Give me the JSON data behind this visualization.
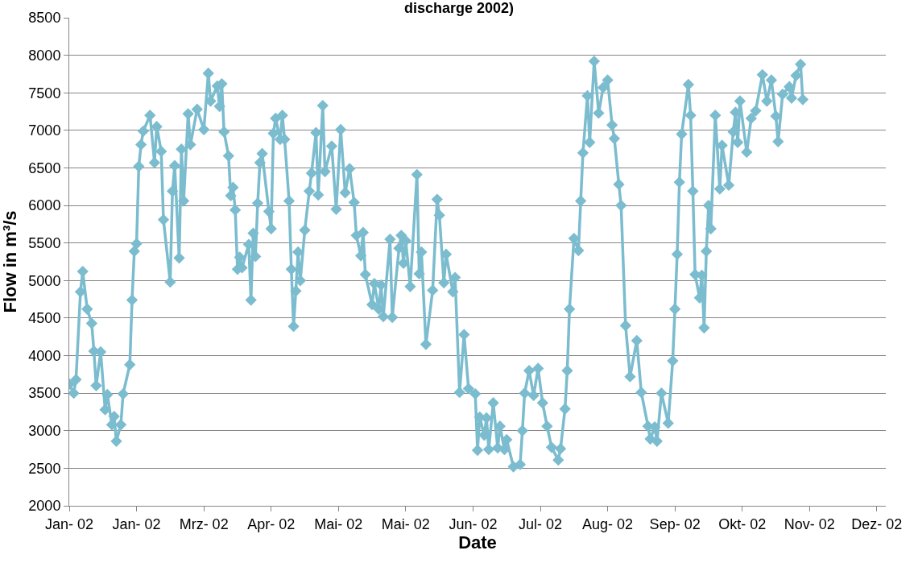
{
  "chart_data": {
    "type": "line",
    "title": "discharge 2002)",
    "xlabel": "Date",
    "ylabel": "Flow in m³/s",
    "x": [
      "2002-01-01",
      "2002-01-03",
      "2002-01-04",
      "2002-01-06",
      "2002-01-07",
      "2002-01-09",
      "2002-01-11",
      "2002-01-12",
      "2002-01-13",
      "2002-01-15",
      "2002-01-17",
      "2002-01-18",
      "2002-01-20",
      "2002-01-21",
      "2002-01-22",
      "2002-01-24",
      "2002-01-25",
      "2002-01-28",
      "2002-01-29",
      "2002-01-30",
      "2002-01-31",
      "2002-02-01",
      "2002-02-02",
      "2002-02-03",
      "2002-02-06",
      "2002-02-08",
      "2002-02-09",
      "2002-02-11",
      "2002-02-12",
      "2002-02-15",
      "2002-02-16",
      "2002-02-17",
      "2002-02-19",
      "2002-02-20",
      "2002-02-21",
      "2002-02-23",
      "2002-02-24",
      "2002-02-27",
      "2002-03-02",
      "2002-03-04",
      "2002-03-05",
      "2002-03-08",
      "2002-03-09",
      "2002-03-10",
      "2002-03-11",
      "2002-03-13",
      "2002-03-14",
      "2002-03-15",
      "2002-03-16",
      "2002-03-17",
      "2002-03-18",
      "2002-03-19",
      "2002-03-22",
      "2002-03-23",
      "2002-03-24",
      "2002-03-25",
      "2002-03-26",
      "2002-03-27",
      "2002-03-28",
      "2002-03-31",
      "2002-04-01",
      "2002-04-02",
      "2002-04-03",
      "2002-04-05",
      "2002-04-06",
      "2002-04-07",
      "2002-04-09",
      "2002-04-10",
      "2002-04-11",
      "2002-04-12",
      "2002-04-13",
      "2002-04-14",
      "2002-04-16",
      "2002-04-18",
      "2002-04-19",
      "2002-04-21",
      "2002-04-22",
      "2002-04-24",
      "2002-04-25",
      "2002-04-28",
      "2002-04-30",
      "2002-05-02",
      "2002-05-04",
      "2002-05-06",
      "2002-05-08",
      "2002-05-09",
      "2002-05-11",
      "2002-05-12",
      "2002-05-13",
      "2002-05-16",
      "2002-05-17",
      "2002-05-19",
      "2002-05-20",
      "2002-05-21",
      "2002-05-24",
      "2002-05-25",
      "2002-05-28",
      "2002-05-29",
      "2002-05-30",
      "2002-05-31",
      "2002-06-02",
      "2002-06-05",
      "2002-06-06",
      "2002-06-07",
      "2002-06-09",
      "2002-06-12",
      "2002-06-14",
      "2002-06-15",
      "2002-06-17",
      "2002-06-18",
      "2002-06-21",
      "2002-06-22",
      "2002-06-24",
      "2002-06-26",
      "2002-06-28",
      "2002-07-01",
      "2002-07-02",
      "2002-07-03",
      "2002-07-05",
      "2002-07-06",
      "2002-07-07",
      "2002-07-09",
      "2002-07-11",
      "2002-07-12",
      "2002-07-14",
      "2002-07-15",
      "2002-07-18",
      "2002-07-21",
      "2002-07-22",
      "2002-07-23",
      "2002-07-25",
      "2002-07-27",
      "2002-07-29",
      "2002-07-31",
      "2002-08-02",
      "2002-08-04",
      "2002-08-07",
      "2002-08-08",
      "2002-08-10",
      "2002-08-11",
      "2002-08-12",
      "2002-08-14",
      "2002-08-16",
      "2002-08-17",
      "2002-08-18",
      "2002-08-20",
      "2002-08-21",
      "2002-08-23",
      "2002-08-25",
      "2002-08-27",
      "2002-08-29",
      "2002-08-31",
      "2002-09-01",
      "2002-09-03",
      "2002-09-04",
      "2002-09-06",
      "2002-09-08",
      "2002-09-11",
      "2002-09-13",
      "2002-09-16",
      "2002-09-17",
      "2002-09-19",
      "2002-09-20",
      "2002-09-22",
      "2002-09-25",
      "2002-09-27",
      "2002-09-28",
      "2002-09-29",
      "2002-09-30",
      "2002-10-01",
      "2002-10-04",
      "2002-10-05",
      "2002-10-06",
      "2002-10-07",
      "2002-10-09",
      "2002-10-10",
      "2002-10-11",
      "2002-10-12",
      "2002-10-13",
      "2002-10-14",
      "2002-10-16",
      "2002-10-18",
      "2002-10-19",
      "2002-10-22",
      "2002-10-24",
      "2002-10-25",
      "2002-10-26",
      "2002-10-27",
      "2002-10-30",
      "2002-11-01",
      "2002-11-03",
      "2002-11-06",
      "2002-11-08",
      "2002-11-10",
      "2002-11-12",
      "2002-11-13",
      "2002-11-15",
      "2002-11-18",
      "2002-11-19",
      "2002-11-21",
      "2002-11-23",
      "2002-11-24"
    ],
    "series": [
      {
        "color": "#7bbccf",
        "values": [
          3620,
          3500,
          3680,
          4850,
          5120,
          4620,
          4430,
          4060,
          3600,
          4050,
          3280,
          3480,
          3080,
          3190,
          2860,
          3080,
          3490,
          3880,
          4740,
          5390,
          5490,
          6520,
          6810,
          6990,
          7200,
          6570,
          7050,
          6720,
          5810,
          4980,
          6190,
          6530,
          5300,
          6750,
          6060,
          7220,
          6810,
          7280,
          7010,
          7760,
          7390,
          7590,
          7320,
          7620,
          6980,
          6660,
          6130,
          6240,
          5940,
          5150,
          5310,
          5170,
          5480,
          4740,
          5630,
          5320,
          6030,
          6570,
          6690,
          5920,
          5690,
          6960,
          7160,
          6880,
          7200,
          6880,
          6060,
          5150,
          4390,
          4860,
          5380,
          5000,
          5670,
          6190,
          6430,
          6970,
          6140,
          7330,
          6450,
          6790,
          5950,
          7010,
          6170,
          6490,
          6040,
          5600,
          5330,
          5640,
          5080,
          4680,
          4960,
          4620,
          4940,
          4520,
          5550,
          4510,
          5430,
          5600,
          5230,
          5530,
          4920,
          6410,
          5090,
          5380,
          4150,
          4870,
          6080,
          5870,
          4970,
          5350,
          4850,
          5040,
          3510,
          4280,
          3560,
          3490,
          2740,
          3180,
          2940,
          3170,
          2750,
          3370,
          2770,
          3060,
          2750,
          2880,
          2520,
          2550,
          3000,
          3500,
          3800,
          3470,
          3830,
          3370,
          3060,
          2780,
          2610,
          2760,
          3290,
          3800,
          4620,
          5560,
          5400,
          6060,
          6700,
          7460,
          6840,
          7920,
          7230,
          7570,
          7670,
          7070,
          6890,
          6280,
          6000,
          4400,
          3720,
          4200,
          3510,
          3060,
          2890,
          3050,
          2860,
          3500,
          3100,
          3930,
          4620,
          5350,
          6310,
          6950,
          7610,
          7200,
          6190,
          5080,
          4770,
          5070,
          4370,
          5390,
          6000,
          5690,
          7200,
          6220,
          6800,
          6270,
          6980,
          7240,
          6840,
          7390,
          6710,
          7160,
          7260,
          7740,
          7390,
          7670,
          7190,
          6850,
          7480,
          7580,
          7430,
          7730,
          7880,
          7410
        ]
      }
    ],
    "xlim": [
      "2002-01-01",
      "2002-12-31"
    ],
    "xticks": [
      {
        "value": "2002-01-01",
        "label": "Jan- 02"
      },
      {
        "value": "2002-01-31",
        "label": "Jan- 02"
      },
      {
        "value": "2002-03-02",
        "label": "Mrz- 02"
      },
      {
        "value": "2002-04-01",
        "label": "Apr- 02"
      },
      {
        "value": "2002-05-01",
        "label": "Mai- 02"
      },
      {
        "value": "2002-05-31",
        "label": "Mai- 02"
      },
      {
        "value": "2002-06-30",
        "label": "Jun- 02"
      },
      {
        "value": "2002-07-30",
        "label": "Jul- 02"
      },
      {
        "value": "2002-08-29",
        "label": "Aug- 02"
      },
      {
        "value": "2002-09-28",
        "label": "Sep- 02"
      },
      {
        "value": "2002-10-28",
        "label": "Okt- 02"
      },
      {
        "value": "2002-11-27",
        "label": "Nov- 02"
      },
      {
        "value": "2002-12-27",
        "label": "Dez- 02"
      }
    ],
    "ylim": [
      2000,
      8500
    ],
    "yticks": [
      2000,
      2500,
      3000,
      3500,
      4000,
      4500,
      5000,
      5500,
      6000,
      6500,
      7000,
      7500,
      8000,
      8500
    ],
    "grid": "y",
    "marker": "diamond",
    "line_style": "solid"
  }
}
